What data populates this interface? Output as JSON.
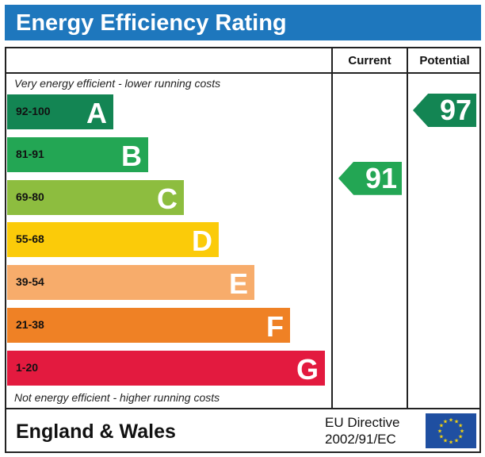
{
  "title": "Energy Efficiency Rating",
  "columns": {
    "current": "Current",
    "potential": "Potential"
  },
  "notes": {
    "top": "Very energy efficient - lower running costs",
    "bottom": "Not energy efficient - higher running costs"
  },
  "footer": {
    "region": "England & Wales",
    "directive_line1": "EU Directive",
    "directive_line2": "2002/91/EC"
  },
  "colors": {
    "title_bar": "#1e77bd",
    "eu_flag": "#1f4fa1",
    "eu_stars": "#f5d40c"
  },
  "chart_data": {
    "type": "bar",
    "categories": [
      "A",
      "B",
      "C",
      "D",
      "E",
      "F",
      "G"
    ],
    "ranges": [
      "92-100",
      "81-91",
      "69-80",
      "55-68",
      "39-54",
      "21-38",
      "1-20"
    ],
    "colors": [
      "#138553",
      "#23a654",
      "#8dbd3f",
      "#fbcb09",
      "#f7ac6b",
      "#ef8125",
      "#e31a3f"
    ],
    "current": {
      "value": 91,
      "band": "B"
    },
    "potential": {
      "value": 97,
      "band": "A"
    }
  }
}
